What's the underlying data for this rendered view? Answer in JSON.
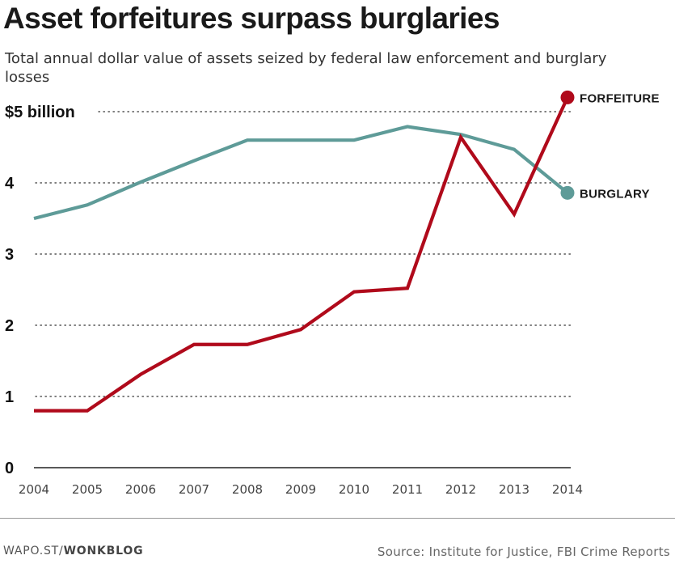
{
  "header": {
    "title": "Asset forfeitures surpass burglaries",
    "subtitle": "Total annual dollar value of assets seized by federal law enforcement and burglary losses"
  },
  "chart_data": {
    "type": "line",
    "x": [
      2004,
      2005,
      2006,
      2007,
      2008,
      2009,
      2010,
      2011,
      2012,
      2013,
      2014
    ],
    "x_tick_labels": [
      "2004",
      "2005",
      "2006",
      "2007",
      "2008",
      "2009",
      "2010",
      "2011",
      "2012",
      "2013",
      "2014"
    ],
    "y_tick_labels": [
      "0",
      "1",
      "2",
      "3",
      "4",
      "$5 billion"
    ],
    "y_ticks": [
      0,
      1,
      2,
      3,
      4,
      5
    ],
    "ylim": [
      0,
      5
    ],
    "grid": "dotted horizontal",
    "series": [
      {
        "name": "FORFEITURE",
        "color": "#b00a1b",
        "values": [
          0.8,
          0.8,
          1.31,
          1.73,
          1.73,
          1.94,
          2.47,
          2.52,
          4.64,
          3.56,
          5.2
        ]
      },
      {
        "name": "BURGLARY",
        "color": "#5e9b98",
        "values": [
          3.5,
          3.69,
          4.01,
          4.31,
          4.6,
          4.6,
          4.6,
          4.79,
          4.68,
          4.47,
          3.86
        ]
      }
    ]
  },
  "footer": {
    "wapo": "WAPO.ST/",
    "brand": "WONKBLOG",
    "source": "Source: Institute for Justice, FBI Crime Reports"
  }
}
